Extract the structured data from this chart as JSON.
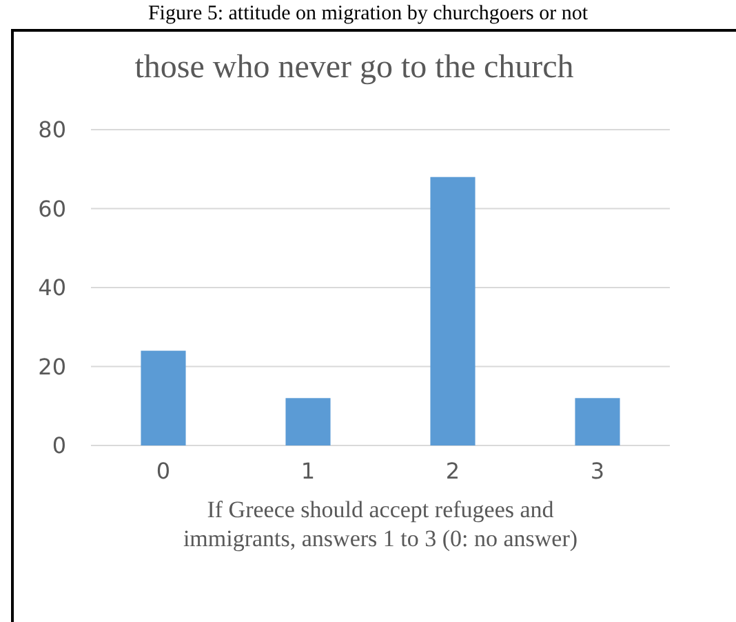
{
  "chart_data": {
    "type": "bar",
    "title": "those who never go to the church",
    "xlabel": "If Greece should accept refugees and immigrants, answers 1 to 3 (0: no answer)",
    "annotations": [
      "Figure 5: attitude on migration by churchgoers or not"
    ],
    "categories": [
      "0",
      "1",
      "2",
      "3"
    ],
    "values": [
      24,
      12,
      68,
      12
    ],
    "color": "#5b9bd5",
    "ylim": [
      0,
      80
    ],
    "yticks": [
      0,
      20,
      40,
      60,
      80
    ],
    "grid": "y"
  }
}
